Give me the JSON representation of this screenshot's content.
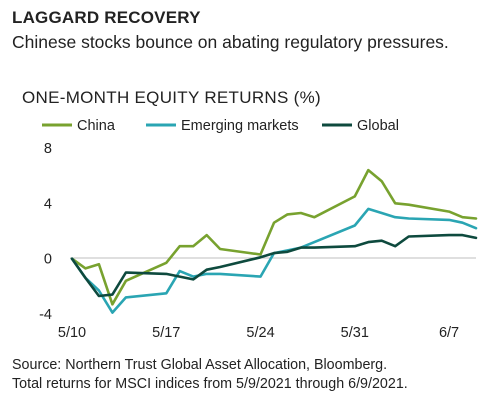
{
  "header": {
    "title": "LAGGARD RECOVERY",
    "subtitle": "Chinese stocks bounce on abating regulatory pressures."
  },
  "footer": {
    "source_line1": "Source: Northern Trust Global Asset Allocation, Bloomberg.",
    "source_line2": "Total returns for MSCI indices from 5/9/2021 through 6/9/2021."
  },
  "chart_data": {
    "type": "line",
    "title": "ONE-MONTH EQUITY RETURNS (%)",
    "xlabel": "",
    "ylabel": "",
    "ylim": [
      -4,
      8
    ],
    "yticks": [
      -4,
      0,
      4,
      8
    ],
    "xticks": [
      {
        "label": "5/10",
        "date": "2021-05-10"
      },
      {
        "label": "5/17",
        "date": "2021-05-17"
      },
      {
        "label": "5/24",
        "date": "2021-05-24"
      },
      {
        "label": "5/31",
        "date": "2021-05-31"
      },
      {
        "label": "6/7",
        "date": "2021-06-07"
      }
    ],
    "grid": false,
    "legend": "top",
    "x": [
      "2021-05-10",
      "2021-05-11",
      "2021-05-12",
      "2021-05-13",
      "2021-05-14",
      "2021-05-17",
      "2021-05-18",
      "2021-05-19",
      "2021-05-20",
      "2021-05-21",
      "2021-05-24",
      "2021-05-25",
      "2021-05-26",
      "2021-05-27",
      "2021-05-28",
      "2021-05-31",
      "2021-06-01",
      "2021-06-02",
      "2021-06-03",
      "2021-06-04",
      "2021-06-07",
      "2021-06-08",
      "2021-06-09"
    ],
    "series": [
      {
        "name": "China",
        "color": "#78a22f",
        "values": [
          0.0,
          -0.7,
          -0.4,
          -3.3,
          -1.6,
          -0.3,
          0.9,
          0.9,
          1.7,
          0.7,
          0.3,
          2.6,
          3.2,
          3.3,
          3.0,
          4.5,
          6.4,
          5.6,
          4.0,
          3.9,
          3.4,
          3.0,
          2.9
        ]
      },
      {
        "name": "Emerging markets",
        "color": "#2aa5b3",
        "values": [
          0.0,
          -1.4,
          -2.3,
          -3.9,
          -2.8,
          -2.5,
          -0.9,
          -1.3,
          -1.1,
          -1.1,
          -1.3,
          0.4,
          0.6,
          0.8,
          1.2,
          2.4,
          3.6,
          3.3,
          3.0,
          2.9,
          2.8,
          2.6,
          2.2
        ]
      },
      {
        "name": "Global",
        "color": "#0e4a3e",
        "values": [
          0.0,
          -1.4,
          -2.7,
          -2.6,
          -1.0,
          -1.1,
          -1.3,
          -1.5,
          -0.8,
          -0.6,
          0.1,
          0.4,
          0.5,
          0.8,
          0.8,
          0.9,
          1.2,
          1.3,
          0.9,
          1.6,
          1.7,
          1.7,
          1.5
        ]
      }
    ]
  }
}
